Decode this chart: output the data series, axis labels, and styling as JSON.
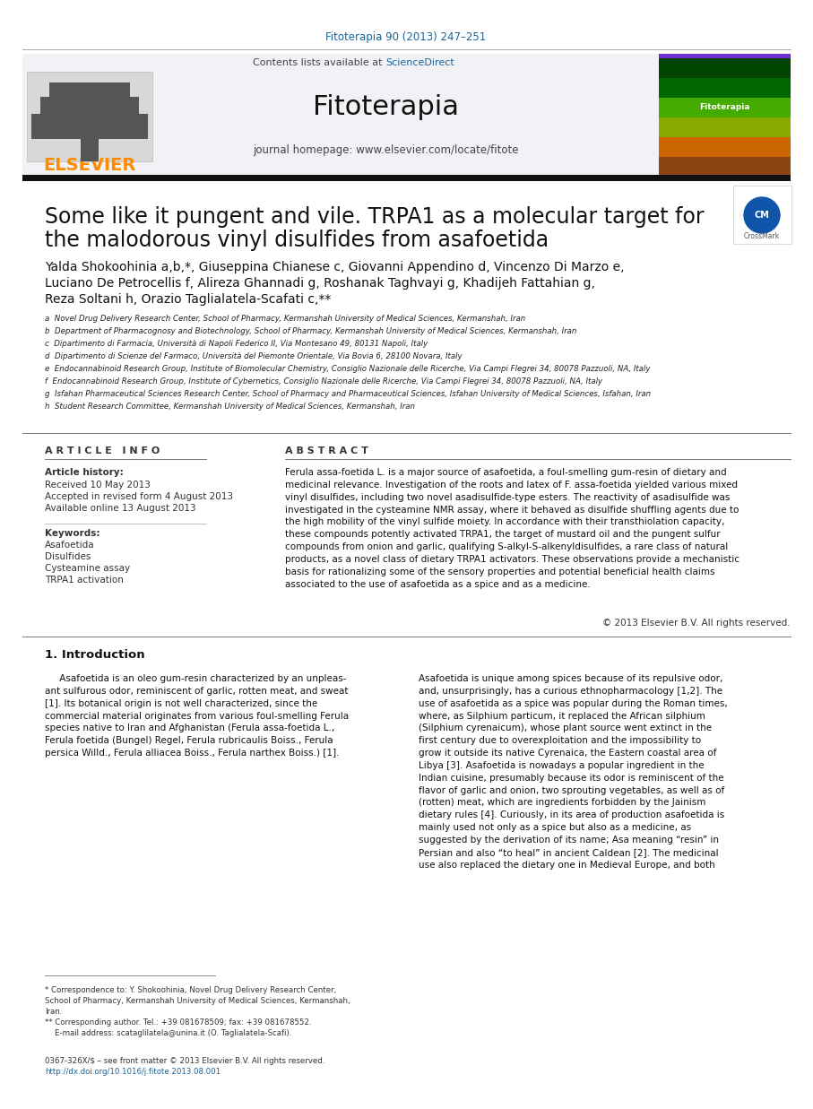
{
  "bg_color": "#ffffff",
  "journal_ref_text": "Fitoterapia 90 (2013) 247–251",
  "journal_ref_color": "#1a6496",
  "journal_ref_fontsize": 8.5,
  "contents_text": "Contents lists available at ",
  "science_direct_text": "ScienceDirect",
  "science_direct_color": "#1a6496",
  "header_fontsize": 8,
  "journal_name": "Fitoterapia",
  "journal_name_fontsize": 22,
  "journal_homepage": "journal homepage: www.elsevier.com/locate/fitote",
  "journal_homepage_fontsize": 8.5,
  "elsevier_color": "#ff8c00",
  "elsevier_fontsize": 14,
  "thick_rule_color": "#1a1a1a",
  "article_title_line1": "Some like it pungent and vile. TRPA1 as a molecular target for",
  "article_title_line2": "the malodorous vinyl disulfides from asafoetida",
  "title_fontsize": 17,
  "authors_fontsize": 10,
  "affil_a": "a  Novel Drug Delivery Research Center, School of Pharmacy, Kermanshah University of Medical Sciences, Kermanshah, Iran",
  "affil_b": "b  Department of Pharmacognosy and Biotechnology, School of Pharmacy, Kermanshah University of Medical Sciences, Kermanshah, Iran",
  "affil_c": "c  Dipartimento di Farmacia, Università di Napoli Federico II, Via Montesano 49, 80131 Napoli, Italy",
  "affil_d": "d  Dipartimento di Scienze del Farmaco, Università del Piemonte Orientale, Via Bovia 6, 28100 Novara, Italy",
  "affil_e": "e  Endocannabinoid Research Group, Institute of Biomolecular Chemistry, Consiglio Nazionale delle Ricerche, Via Campi Flegrei 34, 80078 Pazzuoli, NA, Italy",
  "affil_f": "f  Endocannabinoid Research Group, Institute of Cybernetics, Consiglio Nazionale delle Ricerche, Via Campi Flegrei 34, 80078 Pazzuoli, NA, Italy",
  "affil_g": "g  Isfahan Pharmaceutical Sciences Research Center, School of Pharmacy and Pharmaceutical Sciences, Isfahan University of Medical Sciences, Isfahan, Iran",
  "affil_h": "h  Student Research Committee, Kermanshah University of Medical Sciences, Kermanshah, Iran",
  "affil_fontsize": 6.2,
  "article_info_title": "A R T I C L E   I N F O",
  "abstract_title": "A B S T R A C T",
  "section_title_fontsize": 8,
  "article_history_label": "Article history:",
  "received_text": "Received 10 May 2013",
  "accepted_text": "Accepted in revised form 4 August 2013",
  "available_text": "Available online 13 August 2013",
  "keywords_label": "Keywords:",
  "keyword1": "Asafoetida",
  "keyword2": "Disulfides",
  "keyword3": "Cysteamine assay",
  "keyword4": "TRPA1 activation",
  "info_fontsize": 7.5,
  "abstract_text": "Ferula assa-foetida L. is a major source of asafoetida, a foul-smelling gum-resin of dietary and\nmedicinal relevance. Investigation of the roots and latex of F. assa-foetida yielded various mixed\nvinyl disulfides, including two novel asadisulfide-type esters. The reactivity of asadisulfide was\ninvestigated in the cysteamine NMR assay, where it behaved as disulfide shuffling agents due to\nthe high mobility of the vinyl sulfide moiety. In accordance with their transthiolation capacity,\nthese compounds potently activated TRPA1, the target of mustard oil and the pungent sulfur\ncompounds from onion and garlic, qualifying S-alkyl-S-alkenyldisulfides, a rare class of natural\nproducts, as a novel class of dietary TRPA1 activators. These observations provide a mechanistic\nbasis for rationalizing some of the sensory properties and potential beneficial health claims\nassociated to the use of asafoetida as a spice and as a medicine.",
  "abstract_fontsize": 7.5,
  "copyright_text": "© 2013 Elsevier B.V. All rights reserved.",
  "copyright_fontsize": 7.5,
  "intro_title": "1. Introduction",
  "intro_title_fontsize": 9.5,
  "intro_col1": "     Asafoetida is an oleo gum-resin characterized by an unpleas-\nant sulfurous odor, reminiscent of garlic, rotten meat, and sweat\n[1]. Its botanical origin is not well characterized, since the\ncommercial material originates from various foul-smelling Ferula\nspecies native to Iran and Afghanistan (Ferula assa-foetida L.,\nFerula foetida (Bungel) Regel, Ferula rubricaulis Boiss., Ferula\npersica Willd., Ferula alliacea Boiss., Ferula narthex Boiss.) [1].",
  "intro_col2": "Asafoetida is unique among spices because of its repulsive odor,\nand, unsurprisingly, has a curious ethnopharmacology [1,2]. The\nuse of asafoetida as a spice was popular during the Roman times,\nwhere, as Silphium particum, it replaced the African silphium\n(Silphium cyrenaicum), whose plant source went extinct in the\nfirst century due to overexploitation and the impossibility to\ngrow it outside its native Cyrenaica, the Eastern coastal area of\nLibya [3]. Asafoetida is nowadays a popular ingredient in the\nIndian cuisine, presumably because its odor is reminiscent of the\nflavor of garlic and onion, two sprouting vegetables, as well as of\n(rotten) meat, which are ingredients forbidden by the Jainism\ndietary rules [4]. Curiously, in its area of production asafoetida is\nmainly used not only as a spice but also as a medicine, as\nsuggested by the derivation of its name; Asa meaning “resin” in\nPersian and also “to heal” in ancient Caldean [2]. The medicinal\nuse also replaced the dietary one in Medieval Europe, and both",
  "intro_fontsize": 7.5,
  "footnote1": "* Correspondence to: Y. Shokoohinia, Novel Drug Delivery Research Center,\nSchool of Pharmacy, Kermanshah University of Medical Sciences, Kermanshah,\nIran.",
  "footnote2": "** Corresponding author. Tel.: +39 081678509; fax: +39 081678552.\n    E-mail address: scataglilatela@unina.it (O. Taglialatela-Scafi).",
  "footnote_fontsize": 6.2,
  "issn_line": "0367-326X/$ – see front matter © 2013 Elsevier B.V. All rights reserved.",
  "doi_line": "http://dx.doi.org/10.1016/j.fitote.2013.08.001",
  "issn_color": "#1a6496"
}
